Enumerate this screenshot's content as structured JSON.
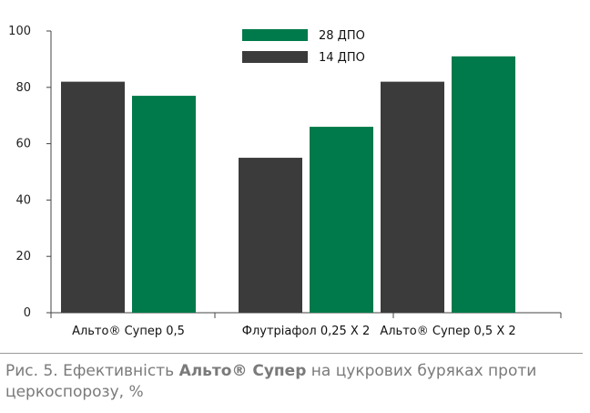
{
  "chart_data": {
    "type": "bar",
    "categories": [
      "Альто® Супер 0,5",
      "Флутріафол 0,25 Х 2",
      "Альто® Супер 0,5 Х 2"
    ],
    "series": [
      {
        "name": "14 ДПО",
        "color": "#3b3b3b",
        "values": [
          82,
          55,
          82
        ]
      },
      {
        "name": "28 ДПО",
        "color": "#007a4a",
        "values": [
          77,
          66,
          91
        ]
      }
    ],
    "legend_order": [
      "28 ДПО",
      "14 ДПО"
    ],
    "legend_position": "top-center",
    "ylim": [
      0,
      100
    ],
    "yticks": [
      "0",
      "20",
      "40",
      "60",
      "80",
      "100"
    ],
    "grid": false
  },
  "caption": {
    "prefix": "Рис. 5. Ефективність ",
    "bold": "Альто® Супер",
    "suffix": " на цукрових буряках проти церкоспорозу, %"
  }
}
